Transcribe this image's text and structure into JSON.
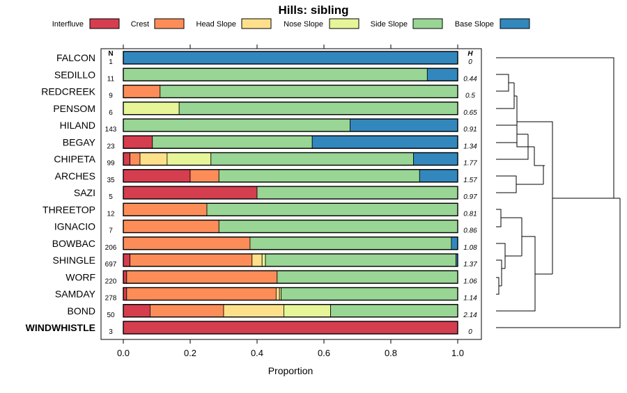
{
  "chart_data": {
    "type": "bar",
    "subtype": "stacked-horizontal-proportion",
    "title": "Hills: sibling",
    "xlabel": "Proportion",
    "ylabel": "",
    "xlim": [
      0,
      1
    ],
    "xticks": [
      "0.0",
      "0.2",
      "0.4",
      "0.6",
      "0.8",
      "1.0"
    ],
    "n_header": "N",
    "h_header": "H",
    "legend_position": "top",
    "legend": [
      {
        "name": "Interfluve",
        "color": "#D53E4F"
      },
      {
        "name": "Crest",
        "color": "#FC8D59"
      },
      {
        "name": "Head Slope",
        "color": "#FEE08B"
      },
      {
        "name": "Nose Slope",
        "color": "#E6F598"
      },
      {
        "name": "Side Slope",
        "color": "#99D594"
      },
      {
        "name": "Base Slope",
        "color": "#3288BD"
      }
    ],
    "categories": [
      "FALCON",
      "SEDILLO",
      "REDCREEK",
      "PENSOM",
      "HILAND",
      "BEGAY",
      "CHIPETA",
      "ARCHES",
      "SAZI",
      "THREETOP",
      "IGNACIO",
      "BOWBAC",
      "SHINGLE",
      "WORF",
      "SAMDAY",
      "BOND",
      "WINDWHISTLE"
    ],
    "highlight": "WINDWHISTLE",
    "n": [
      "1",
      "11",
      "9",
      "6",
      "143",
      "23",
      "99",
      "35",
      "5",
      "12",
      "7",
      "206",
      "697",
      "220",
      "278",
      "50",
      "3"
    ],
    "h": [
      "0",
      "0.44",
      "0.5",
      "0.65",
      "0.91",
      "1.34",
      "1.77",
      "1.57",
      "0.97",
      "0.81",
      "0.86",
      "1.08",
      "1.37",
      "1.06",
      "1.14",
      "2.14",
      "0"
    ],
    "series": [
      {
        "name": "Interfluve",
        "values": [
          0,
          0,
          0,
          0,
          0,
          0.087,
          0.02,
          0.2,
          0.4,
          0,
          0,
          0,
          0.02,
          0.01,
          0.01,
          0.08,
          1.0
        ]
      },
      {
        "name": "Crest",
        "values": [
          0,
          0,
          0.11,
          0,
          0,
          0,
          0.03,
          0.086,
          0,
          0.25,
          0.286,
          0.379,
          0.365,
          0.45,
          0.447,
          0.22,
          0
        ]
      },
      {
        "name": "Head Slope",
        "values": [
          0,
          0,
          0,
          0,
          0,
          0,
          0.081,
          0,
          0,
          0,
          0,
          0,
          0.03,
          0,
          0.01,
          0.18,
          0
        ]
      },
      {
        "name": "Nose Slope",
        "values": [
          0,
          0,
          0,
          0.167,
          0,
          0,
          0.131,
          0,
          0,
          0,
          0,
          0,
          0.01,
          0,
          0.005,
          0.14,
          0
        ]
      },
      {
        "name": "Side Slope",
        "values": [
          0,
          0.909,
          0.89,
          0.833,
          0.678,
          0.478,
          0.606,
          0.6,
          0.6,
          0.75,
          0.714,
          0.602,
          0.57,
          0.54,
          0.528,
          0.38,
          0
        ]
      },
      {
        "name": "Base Slope",
        "values": [
          1.0,
          0.091,
          0,
          0,
          0.322,
          0.435,
          0.132,
          0.114,
          0,
          0,
          0,
          0.019,
          0.005,
          0,
          0,
          0,
          0
        ]
      }
    ]
  }
}
